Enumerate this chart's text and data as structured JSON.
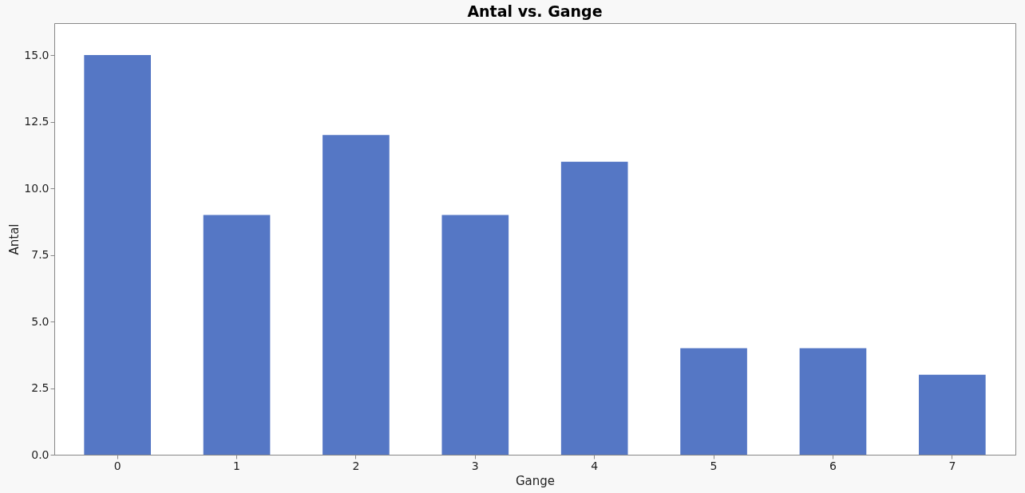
{
  "chart_data": {
    "type": "bar",
    "title": "Antal vs. Gange",
    "xlabel": "Gange",
    "ylabel": "Antal",
    "categories": [
      "0",
      "1",
      "2",
      "3",
      "4",
      "5",
      "6",
      "7"
    ],
    "values": [
      15,
      9,
      12,
      9,
      11,
      4,
      4,
      3
    ],
    "color": "#5577c5",
    "ylim": [
      0,
      16.2
    ],
    "yticks": [
      {
        "value": 0,
        "label": "0.0"
      },
      {
        "value": 2.5,
        "label": "2.5"
      },
      {
        "value": 5,
        "label": "5.0"
      },
      {
        "value": 7.5,
        "label": "7.5"
      },
      {
        "value": 10,
        "label": "10.0"
      },
      {
        "value": 12.5,
        "label": "12.5"
      },
      {
        "value": 15,
        "label": "15.0"
      }
    ],
    "grid": false
  }
}
